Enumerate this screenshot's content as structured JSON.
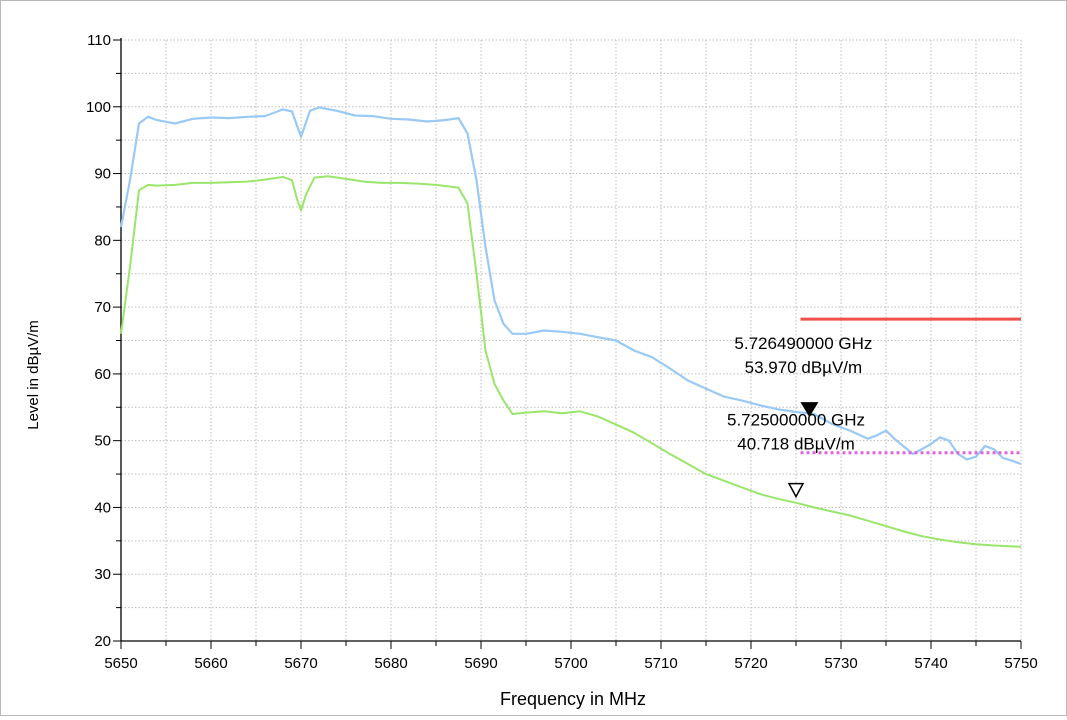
{
  "chart_data": {
    "type": "line",
    "title": "",
    "xlabel": "Frequency in MHz",
    "ylabel": "Level in dBµV/m",
    "xlim": [
      5650,
      5750
    ],
    "ylim": [
      20,
      110
    ],
    "x_ticks": [
      "5650",
      "5660",
      "5670",
      "5680",
      "5690",
      "5700",
      "5710",
      "5720",
      "5730",
      "5740",
      "5750"
    ],
    "y_ticks": [
      "20",
      "30",
      "40",
      "50",
      "60",
      "70",
      "80",
      "90",
      "100",
      "110"
    ],
    "grid": true,
    "colors": {
      "peak": "#99c9f5",
      "average": "#99e66b",
      "limit_peak": "#f0504a",
      "limit_average": "#dd66dd"
    },
    "series": [
      {
        "key": "peak",
        "x": [
          5650,
          5651,
          5652,
          5653,
          5654,
          5656,
          5658,
          5660,
          5662,
          5664,
          5666,
          5668,
          5669,
          5670,
          5671,
          5672,
          5674,
          5676,
          5678,
          5680,
          5682,
          5684,
          5686,
          5687.5,
          5688.5,
          5689.5,
          5690.5,
          5691.5,
          5692.5,
          5693.5,
          5695,
          5697,
          5699,
          5701,
          5703,
          5705,
          5707,
          5709,
          5711,
          5713,
          5715,
          5717,
          5719,
          5721,
          5723,
          5725,
          5727,
          5729,
          5731,
          5733,
          5734,
          5735,
          5736,
          5738,
          5740,
          5741,
          5742,
          5743,
          5744,
          5745,
          5746,
          5747,
          5748,
          5749,
          5750
        ],
        "y": [
          82,
          89,
          97.5,
          98.5,
          98,
          97.5,
          98.2,
          98.4,
          98.3,
          98.5,
          98.6,
          99.6,
          99.3,
          95.5,
          99.4,
          99.9,
          99.4,
          98.7,
          98.6,
          98.2,
          98.1,
          97.8,
          98,
          98.3,
          96,
          89,
          79,
          71,
          67.5,
          66,
          66,
          66.5,
          66.3,
          66,
          65.5,
          65,
          63.5,
          62.5,
          60.8,
          59,
          57.8,
          56.6,
          56,
          55.3,
          54.7,
          54.3,
          54,
          52.5,
          51.5,
          50.3,
          50.8,
          51.5,
          50.2,
          48,
          49.5,
          50.5,
          50,
          48,
          47.2,
          47.6,
          49.2,
          48.7,
          47.4,
          47,
          46.5
        ]
      },
      {
        "key": "average",
        "x": [
          5650,
          5651,
          5652,
          5653,
          5654,
          5656,
          5658,
          5660,
          5662,
          5664,
          5666,
          5668,
          5669,
          5669.6,
          5670,
          5670.6,
          5671.5,
          5673,
          5675,
          5677,
          5679,
          5681,
          5683,
          5685,
          5687.5,
          5688.5,
          5689.5,
          5690.5,
          5691.5,
          5692.5,
          5693.5,
          5695,
          5697,
          5699,
          5701,
          5703,
          5705,
          5707,
          5709,
          5711,
          5713,
          5715,
          5717,
          5719,
          5721,
          5723,
          5725,
          5727,
          5729,
          5731,
          5733,
          5735,
          5737,
          5739,
          5741,
          5743,
          5745,
          5747,
          5750
        ],
        "y": [
          66,
          76,
          87.5,
          88.3,
          88.2,
          88.3,
          88.6,
          88.6,
          88.7,
          88.8,
          89.1,
          89.5,
          89,
          86,
          84.5,
          87,
          89.4,
          89.6,
          89.2,
          88.8,
          88.6,
          88.6,
          88.5,
          88.3,
          87.9,
          85.5,
          75,
          63.5,
          58.5,
          56,
          54,
          54.2,
          54.4,
          54.1,
          54.4,
          53.6,
          52.4,
          51.2,
          49.6,
          48,
          46.5,
          45,
          44,
          43,
          42,
          41.3,
          40.7,
          40,
          39.4,
          38.8,
          38,
          37.2,
          36.4,
          35.7,
          35.2,
          34.8,
          34.5,
          34.3,
          34.1
        ]
      },
      {
        "key": "limit_peak",
        "x": [
          5725.5,
          5750
        ],
        "y": [
          68.2,
          68.2
        ]
      },
      {
        "key": "limit_average",
        "x": [
          5725.5,
          5750
        ],
        "y": [
          48.2,
          48.2
        ]
      }
    ],
    "markers": [
      {
        "key": "marker_peak",
        "freq": "5.726490000 GHz",
        "level": "53.970 dBµV/m",
        "x": 5726.49,
        "y": 53.97,
        "style": "filled"
      },
      {
        "key": "marker_average",
        "freq": "5.725000000 GHz",
        "level": "40.718 dBµV/m",
        "x": 5725,
        "y": 40.718,
        "style": "outline"
      }
    ]
  }
}
